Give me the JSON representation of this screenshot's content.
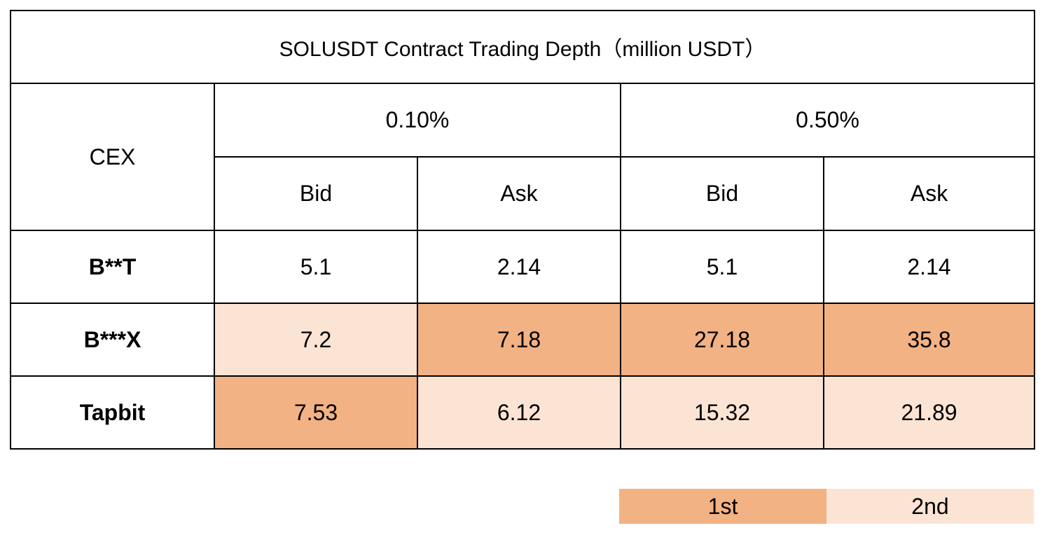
{
  "colors": {
    "rank1": "#f2b284",
    "rank2": "#fce4d4",
    "none": "#ffffff",
    "border": "#000000"
  },
  "chart_data": {
    "type": "table",
    "title": "SOLUSDT Contract Trading Depth（million USDT）",
    "row_header_label": "CEX",
    "column_groups": [
      "0.10%",
      "0.50%"
    ],
    "subcolumns": [
      "Bid",
      "Ask",
      "Bid",
      "Ask"
    ],
    "rows": [
      {
        "name": "B**T",
        "values": [
          "5.1",
          "2.14",
          "5.1",
          "2.14"
        ],
        "rank": [
          0,
          0,
          0,
          0
        ]
      },
      {
        "name": "B***X",
        "values": [
          "7.2",
          "7.18",
          "27.18",
          "35.8"
        ],
        "rank": [
          2,
          1,
          1,
          1
        ]
      },
      {
        "name": "Tapbit",
        "values": [
          "7.53",
          "6.12",
          "15.32",
          "21.89"
        ],
        "rank": [
          1,
          2,
          2,
          2
        ]
      }
    ],
    "legend": [
      {
        "label": "1st",
        "rank": 1
      },
      {
        "label": "2nd",
        "rank": 2
      }
    ]
  }
}
